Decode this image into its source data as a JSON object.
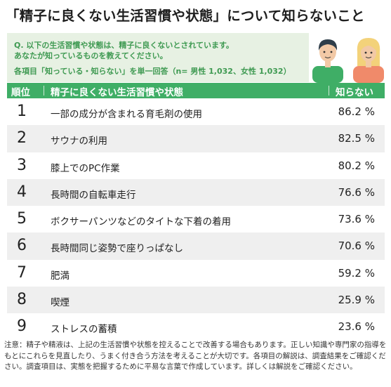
{
  "title": "「精子に良くない生活習慣や状態」について知らないこと",
  "question_line1": "Q. 以下の生活習慣や状態は、精子に良くないとされています。",
  "question_line2": "あなたが知っているものを教えてください。",
  "sample_note": "各項目「知っている・知らない」を単一回答（n= 男性 1,032、女性 1,032）",
  "header": {
    "rank": "順位",
    "item": "精子に良くない生活習慣や状態",
    "value": "知らない"
  },
  "chart_data": {
    "type": "table",
    "columns": [
      "順位",
      "精子に良くない生活習慣や状態",
      "知らない"
    ],
    "rows": [
      {
        "rank": "1",
        "item": "一部の成分が含まれる育毛剤の使用",
        "value": 86.2,
        "value_text": "86.2 %"
      },
      {
        "rank": "2",
        "item": "サウナの利用",
        "value": 82.5,
        "value_text": "82.5 %"
      },
      {
        "rank": "3",
        "item": "膝上でのPC作業",
        "value": 80.2,
        "value_text": "80.2 %"
      },
      {
        "rank": "4",
        "item": "長時間の自転車走行",
        "value": 76.6,
        "value_text": "76.6 %"
      },
      {
        "rank": "5",
        "item": "ボクサーパンツなどのタイトな下着の着用",
        "value": 73.6,
        "value_text": "73.6 %"
      },
      {
        "rank": "6",
        "item": "長時間同じ姿勢で座りっぱなし",
        "value": 70.6,
        "value_text": "70.6 %"
      },
      {
        "rank": "7",
        "item": "肥満",
        "value": 59.2,
        "value_text": "59.2 %"
      },
      {
        "rank": "8",
        "item": "喫煙",
        "value": 25.9,
        "value_text": "25.9 %"
      },
      {
        "rank": "9",
        "item": "ストレスの蓄積",
        "value": 23.6,
        "value_text": "23.6 %"
      }
    ]
  },
  "note": "注意：精子や精液は、上記の生活習慣や状態を控えることで改善する場合もあります。正しい知識や専門家の指導をもとにこれらを見直したり、うまく付き合う方法を考えることが大切です。各項目の解説は、調査結果をご確認ください。調査項目は、実態を把握するために平易な言葉で作成しています。詳しくは解説をご確認ください。",
  "colors": {
    "accent_green": "#3fae66",
    "question_green": "#3f9a52",
    "info_bg": "#e7f1e3",
    "row_alt": "#efefef"
  },
  "icons": [
    "man-illustration-icon",
    "woman-illustration-icon"
  ]
}
